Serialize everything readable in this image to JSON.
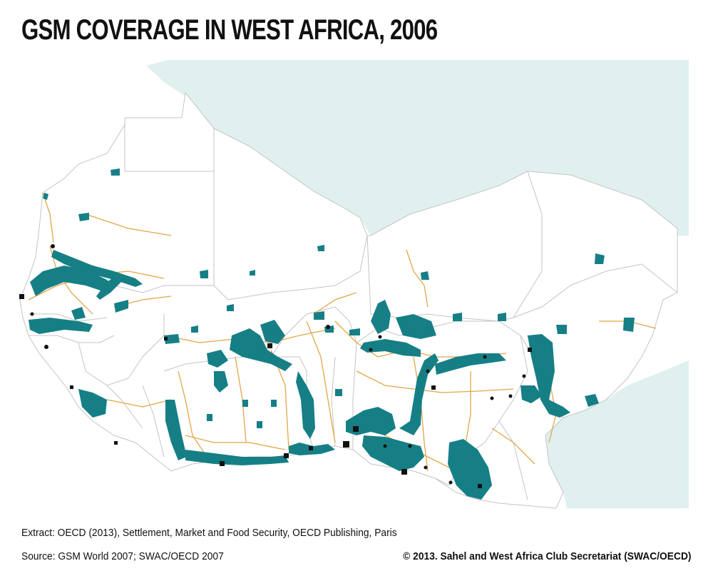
{
  "title": "GSM COVERAGE IN WEST AFRICA, 2006",
  "footer": {
    "extract": "Extract: OECD (2013), Settlement, Market and Food Security, OECD Publishing, Paris",
    "source": "Source: GSM World 2007; SWAC/OECD 2007",
    "copyright": "© 2013. Sahel and West Africa Club Secretariat (SWAC/OECD)"
  },
  "colors": {
    "sea": "#dff0ee",
    "land": "#ffffff",
    "border": "#c4c4c4",
    "coverage": "#167f86",
    "roads": "#e2a648",
    "cities": "#111111"
  }
}
